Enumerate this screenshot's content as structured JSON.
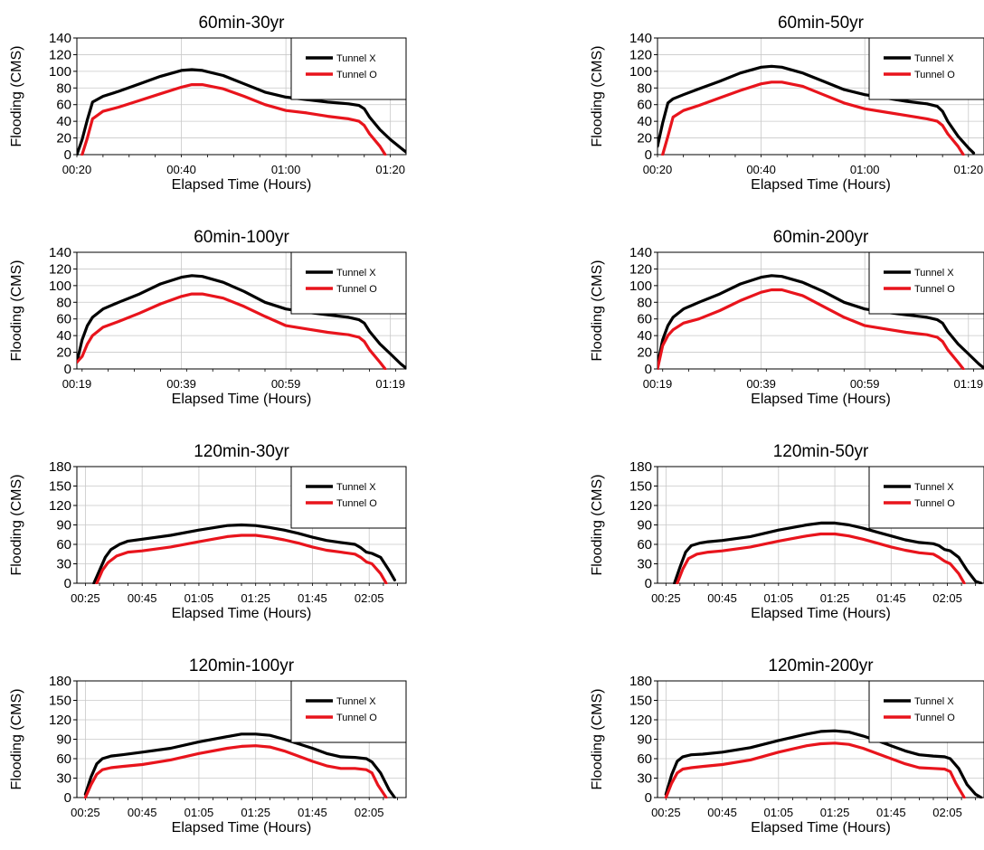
{
  "colors": {
    "tunnel_x": "#000000",
    "tunnel_o": "#e8141c",
    "grid": "#c8c8c8"
  },
  "chart_data": [
    {
      "type": "line",
      "title": "60min-30yr",
      "xlabel": "Elapsed Time (Hours)",
      "ylabel": "Flooding (CMS)",
      "xlim_minutes": [
        20,
        83
      ],
      "ylim": [
        0,
        140
      ],
      "yticks": [
        0,
        20,
        40,
        60,
        80,
        100,
        120,
        140
      ],
      "xtick_minutes": [
        20,
        40,
        60,
        80
      ],
      "xtick_labels": [
        "00:20",
        "00:40",
        "01:00",
        "01:20"
      ],
      "grid": true,
      "legend": "top-right",
      "series": [
        {
          "name": "Tunnel X",
          "x_minutes": [
            20,
            21,
            22,
            23,
            25,
            28,
            32,
            36,
            40,
            42,
            44,
            48,
            52,
            56,
            60,
            64,
            68,
            72,
            74,
            75,
            76,
            78,
            80,
            82,
            83
          ],
          "y": [
            0,
            18,
            42,
            63,
            70,
            76,
            85,
            94,
            101,
            102,
            101,
            95,
            85,
            75,
            69,
            66,
            63,
            61,
            59,
            55,
            45,
            30,
            18,
            8,
            3
          ]
        },
        {
          "name": "Tunnel O",
          "x_minutes": [
            21,
            22,
            23,
            25,
            28,
            32,
            36,
            40,
            42,
            44,
            48,
            52,
            56,
            60,
            64,
            68,
            72,
            74,
            75,
            76,
            78,
            79
          ],
          "y": [
            0,
            20,
            43,
            52,
            57,
            65,
            73,
            81,
            84,
            84,
            79,
            70,
            60,
            53,
            50,
            46,
            43,
            40,
            35,
            25,
            10,
            0
          ]
        }
      ]
    },
    {
      "type": "line",
      "title": "60min-50yr",
      "xlabel": "Elapsed Time (Hours)",
      "ylabel": "Flooding (CMS)",
      "xlim_minutes": [
        20,
        83
      ],
      "ylim": [
        0,
        140
      ],
      "yticks": [
        0,
        20,
        40,
        60,
        80,
        100,
        120,
        140
      ],
      "xtick_minutes": [
        20,
        40,
        60,
        80
      ],
      "xtick_labels": [
        "00:20",
        "00:40",
        "01:00",
        "01:20"
      ],
      "grid": true,
      "legend": "top-right",
      "series": [
        {
          "name": "Tunnel X",
          "x_minutes": [
            20,
            21,
            22,
            23,
            25,
            28,
            32,
            36,
            40,
            42,
            44,
            48,
            52,
            56,
            60,
            64,
            68,
            72,
            74,
            75,
            76,
            78,
            80,
            81
          ],
          "y": [
            10,
            38,
            62,
            67,
            72,
            79,
            88,
            98,
            105,
            106,
            105,
            98,
            88,
            78,
            72,
            68,
            64,
            61,
            58,
            52,
            40,
            22,
            8,
            2
          ]
        },
        {
          "name": "Tunnel O",
          "x_minutes": [
            21,
            22,
            23,
            25,
            28,
            32,
            36,
            40,
            42,
            44,
            48,
            52,
            56,
            60,
            64,
            68,
            72,
            74,
            75,
            76,
            78,
            79
          ],
          "y": [
            0,
            22,
            45,
            53,
            59,
            68,
            77,
            85,
            87,
            87,
            82,
            72,
            62,
            55,
            51,
            47,
            43,
            40,
            35,
            25,
            10,
            0
          ]
        }
      ]
    },
    {
      "type": "line",
      "title": "60min-100yr",
      "xlabel": "Elapsed Time (Hours)",
      "ylabel": "Flooding (CMS)",
      "xlim_minutes": [
        19,
        82
      ],
      "ylim": [
        0,
        140
      ],
      "yticks": [
        0,
        20,
        40,
        60,
        80,
        100,
        120,
        140
      ],
      "xtick_minutes": [
        19,
        39,
        59,
        79
      ],
      "xtick_labels": [
        "00:19",
        "00:39",
        "00:59",
        "01:19"
      ],
      "grid": true,
      "legend": "top-right",
      "series": [
        {
          "name": "Tunnel X",
          "x_minutes": [
            19,
            20,
            21,
            22,
            24,
            27,
            31,
            35,
            39,
            41,
            43,
            47,
            51,
            55,
            59,
            63,
            67,
            71,
            73,
            74,
            75,
            77,
            79,
            81,
            82
          ],
          "y": [
            8,
            35,
            52,
            62,
            72,
            80,
            90,
            102,
            110,
            112,
            111,
            104,
            93,
            80,
            72,
            68,
            65,
            62,
            59,
            55,
            45,
            30,
            18,
            6,
            1
          ]
        },
        {
          "name": "Tunnel O",
          "x_minutes": [
            19,
            20,
            21,
            22,
            24,
            27,
            31,
            35,
            39,
            41,
            43,
            47,
            51,
            55,
            59,
            63,
            67,
            71,
            73,
            74,
            75,
            77,
            78
          ],
          "y": [
            8,
            15,
            30,
            40,
            50,
            57,
            67,
            78,
            87,
            90,
            90,
            85,
            75,
            63,
            52,
            48,
            44,
            41,
            38,
            33,
            23,
            8,
            0
          ]
        }
      ]
    },
    {
      "type": "line",
      "title": "60min-200yr",
      "xlabel": "Elapsed Time (Hours)",
      "ylabel": "Flooding (CMS)",
      "xlim_minutes": [
        19,
        82
      ],
      "ylim": [
        0,
        140
      ],
      "yticks": [
        0,
        20,
        40,
        60,
        80,
        100,
        120,
        140
      ],
      "xtick_minutes": [
        19,
        39,
        59,
        79
      ],
      "xtick_labels": [
        "00:19",
        "00:39",
        "00:59",
        "01:19"
      ],
      "grid": true,
      "legend": "top-right",
      "series": [
        {
          "name": "Tunnel X",
          "x_minutes": [
            19,
            20,
            21,
            22,
            24,
            27,
            31,
            35,
            39,
            41,
            43,
            47,
            51,
            55,
            59,
            63,
            67,
            71,
            73,
            74,
            75,
            77,
            79,
            81,
            82
          ],
          "y": [
            5,
            35,
            52,
            62,
            72,
            80,
            90,
            102,
            110,
            112,
            111,
            104,
            93,
            80,
            72,
            68,
            65,
            62,
            59,
            55,
            45,
            30,
            18,
            6,
            1
          ]
        },
        {
          "name": "Tunnel O",
          "x_minutes": [
            19,
            20,
            21,
            22,
            24,
            27,
            31,
            35,
            39,
            41,
            43,
            47,
            51,
            55,
            59,
            63,
            67,
            71,
            73,
            74,
            75,
            77,
            78
          ],
          "y": [
            0,
            28,
            40,
            47,
            55,
            60,
            70,
            82,
            92,
            95,
            95,
            88,
            75,
            62,
            52,
            48,
            44,
            41,
            38,
            33,
            23,
            8,
            0
          ]
        }
      ]
    },
    {
      "type": "line",
      "title": "120min-30yr",
      "xlabel": "Elapsed Time (Hours)",
      "ylabel": "Flooding (CMS)",
      "xlim_minutes": [
        22,
        138
      ],
      "ylim": [
        0,
        180
      ],
      "yticks": [
        0,
        30,
        60,
        90,
        120,
        150,
        180
      ],
      "xtick_minutes": [
        25,
        45,
        65,
        85,
        105,
        125
      ],
      "xtick_labels": [
        "00:25",
        "00:45",
        "01:05",
        "01:25",
        "01:45",
        "02:05"
      ],
      "grid": true,
      "legend": "top-right",
      "series": [
        {
          "name": "Tunnel X",
          "x_minutes": [
            28,
            30,
            32,
            34,
            37,
            40,
            45,
            55,
            65,
            75,
            80,
            85,
            90,
            95,
            100,
            105,
            110,
            115,
            120,
            122,
            124,
            126,
            129,
            132,
            134
          ],
          "y": [
            0,
            20,
            40,
            52,
            60,
            65,
            68,
            74,
            82,
            89,
            90,
            89,
            86,
            82,
            77,
            71,
            66,
            63,
            60,
            55,
            48,
            46,
            40,
            20,
            5
          ]
        },
        {
          "name": "Tunnel O",
          "x_minutes": [
            29,
            31,
            33,
            36,
            40,
            45,
            55,
            65,
            75,
            80,
            85,
            90,
            95,
            100,
            105,
            110,
            115,
            120,
            122,
            124,
            126,
            129,
            131
          ],
          "y": [
            0,
            20,
            32,
            42,
            48,
            50,
            56,
            64,
            72,
            74,
            74,
            71,
            67,
            62,
            56,
            51,
            48,
            45,
            40,
            33,
            30,
            15,
            0
          ]
        }
      ]
    },
    {
      "type": "line",
      "title": "120min-50yr",
      "xlabel": "Elapsed Time (Hours)",
      "ylabel": "Flooding (CMS)",
      "xlim_minutes": [
        22,
        138
      ],
      "ylim": [
        0,
        180
      ],
      "yticks": [
        0,
        30,
        60,
        90,
        120,
        150,
        180
      ],
      "xtick_minutes": [
        25,
        45,
        65,
        85,
        105,
        125
      ],
      "xtick_labels": [
        "00:25",
        "00:45",
        "01:05",
        "01:25",
        "01:45",
        "02:05"
      ],
      "grid": true,
      "legend": "top-right",
      "series": [
        {
          "name": "Tunnel X",
          "x_minutes": [
            28,
            30,
            32,
            34,
            37,
            40,
            45,
            55,
            65,
            75,
            80,
            85,
            90,
            95,
            100,
            105,
            110,
            115,
            120,
            122,
            124,
            126,
            129,
            132,
            135,
            137
          ],
          "y": [
            0,
            25,
            48,
            58,
            62,
            64,
            66,
            72,
            82,
            90,
            93,
            93,
            90,
            85,
            79,
            73,
            67,
            63,
            61,
            58,
            52,
            50,
            40,
            20,
            3,
            0
          ]
        },
        {
          "name": "Tunnel O",
          "x_minutes": [
            29,
            31,
            33,
            36,
            40,
            45,
            55,
            65,
            75,
            80,
            85,
            90,
            95,
            100,
            105,
            110,
            115,
            120,
            122,
            124,
            126,
            129,
            131
          ],
          "y": [
            0,
            22,
            38,
            45,
            48,
            50,
            56,
            65,
            73,
            76,
            76,
            73,
            68,
            62,
            56,
            51,
            47,
            45,
            40,
            34,
            30,
            15,
            0
          ]
        }
      ]
    },
    {
      "type": "line",
      "title": "120min-100yr",
      "xlabel": "Elapsed Time (Hours)",
      "ylabel": "Flooding (CMS)",
      "xlim_minutes": [
        22,
        138
      ],
      "ylim": [
        0,
        180
      ],
      "yticks": [
        0,
        30,
        60,
        90,
        120,
        150,
        180
      ],
      "xtick_minutes": [
        25,
        45,
        65,
        85,
        105,
        125
      ],
      "xtick_labels": [
        "00:25",
        "00:45",
        "01:05",
        "01:25",
        "01:45",
        "02:05"
      ],
      "grid": true,
      "legend": "top-right",
      "series": [
        {
          "name": "Tunnel X",
          "x_minutes": [
            25,
            27,
            29,
            31,
            34,
            38,
            45,
            55,
            65,
            75,
            80,
            85,
            90,
            95,
            100,
            105,
            110,
            115,
            120,
            124,
            126,
            129,
            132,
            134
          ],
          "y": [
            5,
            32,
            52,
            60,
            64,
            66,
            70,
            76,
            86,
            94,
            98,
            98,
            96,
            90,
            83,
            76,
            68,
            63,
            62,
            60,
            55,
            38,
            12,
            0
          ]
        },
        {
          "name": "Tunnel O",
          "x_minutes": [
            25,
            27,
            29,
            31,
            34,
            38,
            45,
            55,
            65,
            75,
            80,
            85,
            90,
            95,
            100,
            105,
            110,
            115,
            120,
            124,
            126,
            128,
            131
          ],
          "y": [
            0,
            20,
            36,
            43,
            46,
            48,
            51,
            58,
            68,
            76,
            79,
            80,
            78,
            72,
            64,
            56,
            49,
            45,
            45,
            43,
            38,
            20,
            0
          ]
        }
      ]
    },
    {
      "type": "line",
      "title": "120min-200yr",
      "xlabel": "Elapsed Time (Hours)",
      "ylabel": "Flooding (CMS)",
      "xlim_minutes": [
        22,
        138
      ],
      "ylim": [
        0,
        180
      ],
      "yticks": [
        0,
        30,
        60,
        90,
        120,
        150,
        180
      ],
      "xtick_minutes": [
        25,
        45,
        65,
        85,
        105,
        125
      ],
      "xtick_labels": [
        "00:25",
        "00:45",
        "01:05",
        "01:25",
        "01:45",
        "02:05"
      ],
      "grid": true,
      "legend": "top-right",
      "series": [
        {
          "name": "Tunnel X",
          "x_minutes": [
            25,
            27,
            29,
            31,
            34,
            38,
            45,
            55,
            65,
            75,
            80,
            85,
            90,
            95,
            100,
            105,
            110,
            115,
            120,
            124,
            126,
            129,
            132,
            135,
            137
          ],
          "y": [
            5,
            35,
            56,
            63,
            66,
            67,
            70,
            77,
            88,
            98,
            102,
            103,
            101,
            95,
            88,
            80,
            72,
            66,
            64,
            63,
            60,
            45,
            20,
            5,
            0
          ]
        },
        {
          "name": "Tunnel O",
          "x_minutes": [
            25,
            27,
            29,
            31,
            34,
            38,
            45,
            55,
            65,
            75,
            80,
            85,
            90,
            95,
            100,
            105,
            110,
            115,
            120,
            124,
            126,
            128,
            131
          ],
          "y": [
            0,
            22,
            38,
            44,
            46,
            48,
            51,
            58,
            70,
            80,
            83,
            84,
            82,
            76,
            68,
            60,
            52,
            46,
            45,
            44,
            40,
            22,
            0
          ]
        }
      ]
    }
  ]
}
